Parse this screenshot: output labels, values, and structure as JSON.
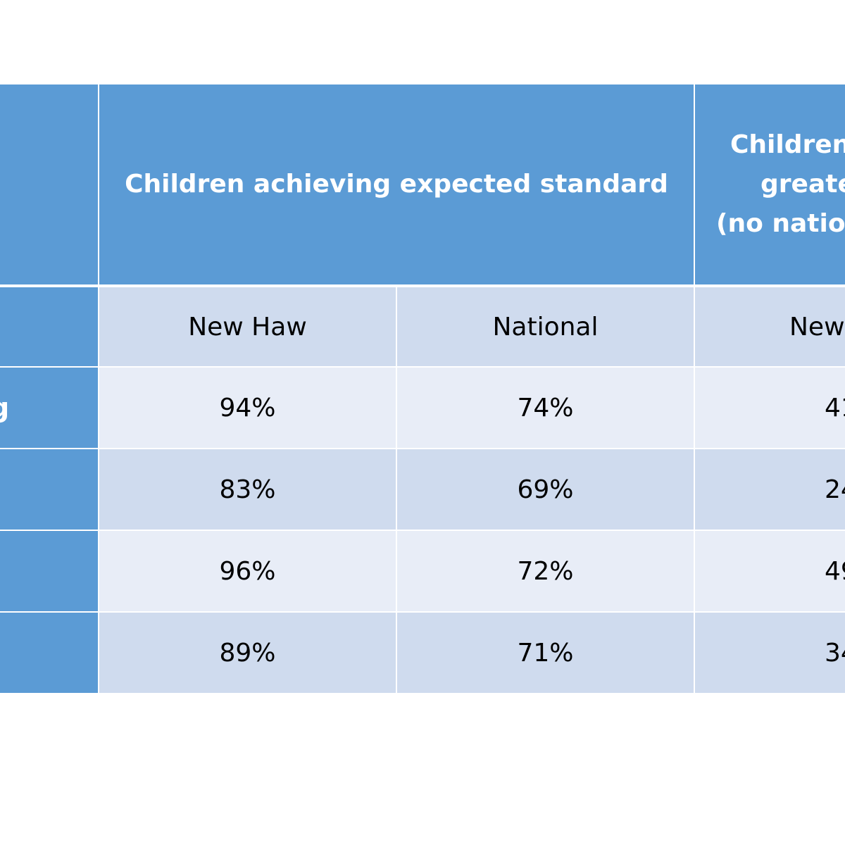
{
  "table": {
    "header": {
      "group1": "Children achieving expected standard",
      "group2_lines": [
        "Children",
        "greate",
        "(no nation"
      ]
    },
    "subheaders": [
      "New Haw",
      "National",
      "New"
    ],
    "rows": [
      {
        "label": "g",
        "new_haw": "94%",
        "national": "74%",
        "partial": "41"
      },
      {
        "label": "",
        "new_haw": "83%",
        "national": "69%",
        "partial": "24"
      },
      {
        "label": "",
        "new_haw": "96%",
        "national": "72%",
        "partial": "49"
      },
      {
        "label": "",
        "new_haw": "89%",
        "national": "71%",
        "partial": "34"
      }
    ]
  },
  "colors": {
    "header_blue": "#5b9bd5",
    "band_dark": "#cfdbee",
    "band_light": "#e8edf7"
  }
}
